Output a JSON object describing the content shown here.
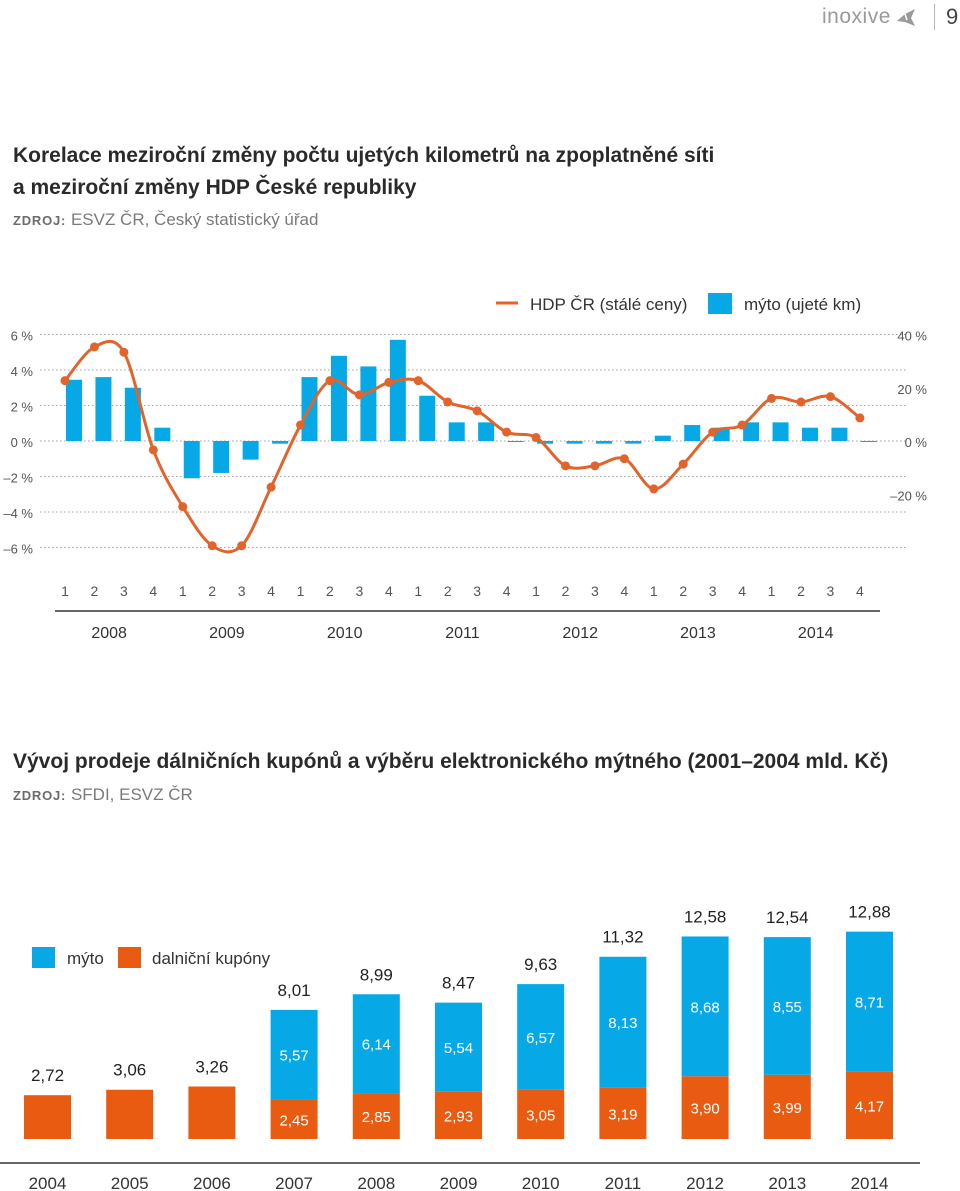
{
  "header": {
    "logo_text": "inoxive",
    "logo_icon": "bird-logo-icon",
    "page_number": "9"
  },
  "colors": {
    "blue": "#06a8e6",
    "orange": "#e85b10",
    "line": "#e0642c",
    "text": "#2a2a2a",
    "grid": "#a0a0a0"
  },
  "chart1": {
    "title_line1": "Korelace meziroční změny počtu ujetých kilometrů na zpoplatněné síti",
    "title_line2": "a meziroční změny HDP České republiky",
    "source_label": "ZDROJ:",
    "source_text": "ESVZ ČR, Český statistický úřad"
  },
  "chart2": {
    "title": "Vývoj prodeje dálničních kupónů a výběru elektronického mýtného (2001–2004 mld. Kč)",
    "source_label": "ZDROJ:",
    "source_text": "SFDI, ESVZ ČR"
  },
  "chart_data": [
    {
      "type": "bar+line",
      "title": "Korelace meziroční změny počtu ujetých kilometrů na zpoplatněné síti a meziroční změny HDP České republiky",
      "legend": [
        "HDP ČR (stálé ceny)",
        "mýto (ujeté km)"
      ],
      "left_axis": {
        "ticks": [
          "6 %",
          "4 %",
          "2 %",
          "0 %",
          "–2 %",
          "–4 %",
          "–6 %"
        ],
        "range": [
          -6,
          6
        ]
      },
      "right_axis": {
        "ticks": [
          "40 %",
          "20 %",
          "0 %",
          "–20 %"
        ],
        "range": [
          -40,
          40
        ]
      },
      "quarters": [
        "1",
        "2",
        "3",
        "4",
        "1",
        "2",
        "3",
        "4",
        "1",
        "2",
        "3",
        "4",
        "1",
        "2",
        "3",
        "4",
        "1",
        "2",
        "3",
        "4",
        "1",
        "2",
        "3",
        "4",
        "1",
        "2",
        "3",
        "4"
      ],
      "years": [
        "2008",
        "2009",
        "2010",
        "2011",
        "2012",
        "2013",
        "2014"
      ],
      "series": [
        {
          "name": "mýto (ujeté km)",
          "axis": "right",
          "values": [
            23,
            24,
            20,
            5,
            -14,
            -12,
            -7,
            -1,
            24,
            32,
            28,
            38,
            17,
            7,
            7,
            0,
            -1,
            -1,
            -1,
            -1,
            2,
            6,
            5,
            7,
            7,
            5,
            5,
            0
          ]
        },
        {
          "name": "HDP ČR (stálé ceny)",
          "axis": "left",
          "values": [
            3.4,
            5.3,
            5.0,
            -0.5,
            -3.7,
            -5.9,
            -5.9,
            -2.6,
            0.9,
            3.4,
            2.6,
            3.3,
            3.4,
            2.2,
            1.7,
            0.5,
            0.2,
            -1.4,
            -1.4,
            -1.0,
            -2.7,
            -1.3,
            0.5,
            0.9,
            2.4,
            2.2,
            2.5,
            1.3
          ]
        }
      ]
    },
    {
      "type": "stacked-bar",
      "title": "Vývoj prodeje dálničních kupónů a výběru elektronického mýtného (2001–2004 mld. Kč)",
      "legend": [
        "mýto",
        "dalniční kupóny"
      ],
      "categories": [
        "2004",
        "2005",
        "2006",
        "2007",
        "2008",
        "2009",
        "2010",
        "2011",
        "2012",
        "2013",
        "2014"
      ],
      "series": [
        {
          "name": "mýto",
          "values": [
            null,
            null,
            null,
            "5,57",
            "6,14",
            "5,54",
            "6,57",
            "8,13",
            "8,68",
            "8,55",
            "8,71"
          ]
        },
        {
          "name": "dalniční kupóny",
          "values": [
            "2,72",
            "3,06",
            "3,26",
            "2,45",
            "2,85",
            "2,93",
            "3,05",
            "3,19",
            "3,90",
            "3,99",
            "4,17"
          ]
        }
      ],
      "totals": [
        "2,72",
        "3,06",
        "3,26",
        "8,01",
        "8,99",
        "8,47",
        "9,63",
        "11,32",
        "12,58",
        "12,54",
        "12,88"
      ]
    }
  ]
}
